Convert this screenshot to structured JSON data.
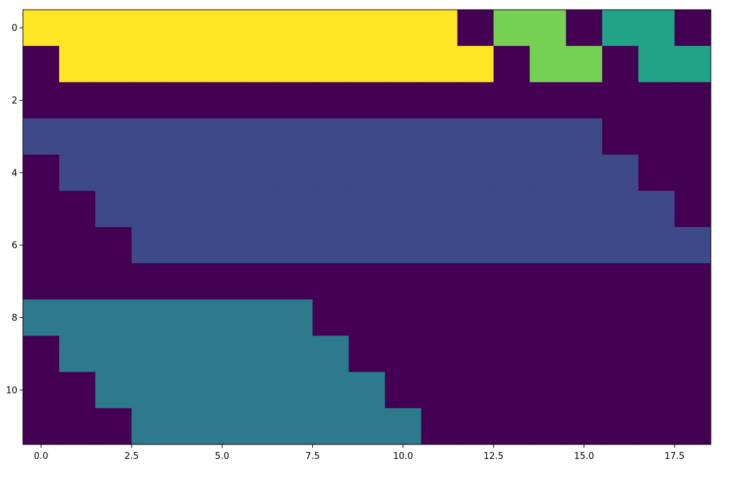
{
  "chart_data": {
    "type": "heatmap",
    "title": "",
    "xlabel": "",
    "ylabel": "",
    "grid": false,
    "colormap": "viridis",
    "xlim": [
      -0.5,
      18.5
    ],
    "ylim": [
      11.5,
      -0.5
    ],
    "x_ticks": [
      0.0,
      2.5,
      5.0,
      7.5,
      10.0,
      12.5,
      15.0,
      17.5
    ],
    "x_tick_labels": [
      "0.0",
      "2.5",
      "5.0",
      "7.5",
      "10.0",
      "12.5",
      "15.0",
      "17.5"
    ],
    "y_ticks": [
      0,
      2,
      4,
      6,
      8,
      10
    ],
    "y_tick_labels": [
      "0",
      "2",
      "4",
      "6",
      "8",
      "10"
    ],
    "value_colors": {
      "0": "#440154",
      "1": "#3e4989",
      "2": "#2c7a8c",
      "3": "#20a386",
      "4": "#76d054",
      "5": "#fde725"
    },
    "values": [
      [
        5,
        5,
        5,
        5,
        5,
        5,
        5,
        5,
        5,
        5,
        5,
        5,
        0,
        4,
        4,
        0,
        3,
        3,
        0
      ],
      [
        0,
        5,
        5,
        5,
        5,
        5,
        5,
        5,
        5,
        5,
        5,
        5,
        5,
        0,
        4,
        4,
        0,
        3,
        3
      ],
      [
        0,
        0,
        0,
        0,
        0,
        0,
        0,
        0,
        0,
        0,
        0,
        0,
        0,
        0,
        0,
        0,
        0,
        0,
        0
      ],
      [
        1,
        1,
        1,
        1,
        1,
        1,
        1,
        1,
        1,
        1,
        1,
        1,
        1,
        1,
        1,
        1,
        0,
        0,
        0
      ],
      [
        0,
        1,
        1,
        1,
        1,
        1,
        1,
        1,
        1,
        1,
        1,
        1,
        1,
        1,
        1,
        1,
        1,
        0,
        0
      ],
      [
        0,
        0,
        1,
        1,
        1,
        1,
        1,
        1,
        1,
        1,
        1,
        1,
        1,
        1,
        1,
        1,
        1,
        1,
        0
      ],
      [
        0,
        0,
        0,
        1,
        1,
        1,
        1,
        1,
        1,
        1,
        1,
        1,
        1,
        1,
        1,
        1,
        1,
        1,
        1
      ],
      [
        0,
        0,
        0,
        0,
        0,
        0,
        0,
        0,
        0,
        0,
        0,
        0,
        0,
        0,
        0,
        0,
        0,
        0,
        0
      ],
      [
        2,
        2,
        2,
        2,
        2,
        2,
        2,
        2,
        0,
        0,
        0,
        0,
        0,
        0,
        0,
        0,
        0,
        0,
        0
      ],
      [
        0,
        2,
        2,
        2,
        2,
        2,
        2,
        2,
        2,
        0,
        0,
        0,
        0,
        0,
        0,
        0,
        0,
        0,
        0
      ],
      [
        0,
        0,
        2,
        2,
        2,
        2,
        2,
        2,
        2,
        2,
        0,
        0,
        0,
        0,
        0,
        0,
        0,
        0,
        0
      ],
      [
        0,
        0,
        0,
        2,
        2,
        2,
        2,
        2,
        2,
        2,
        2,
        0,
        0,
        0,
        0,
        0,
        0,
        0,
        0
      ]
    ]
  }
}
